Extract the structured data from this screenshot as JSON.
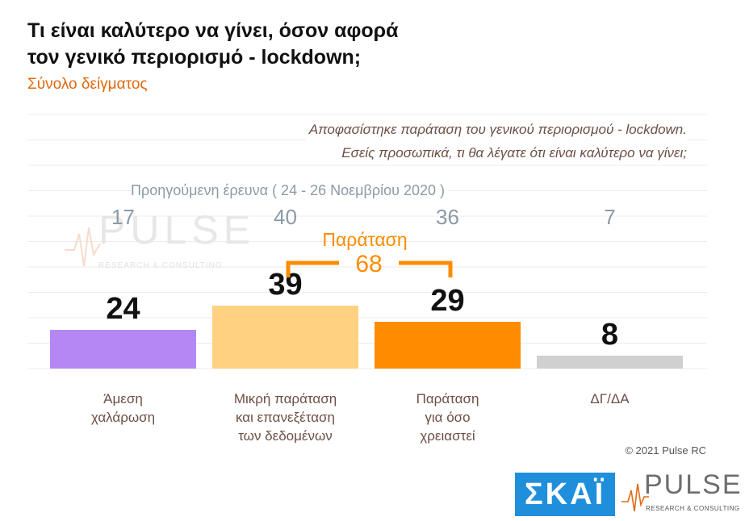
{
  "header": {
    "title_line1": "Τι είναι καλύτερο να γίνει, όσον αφορά",
    "title_line2": "τον γενικό περιορισμό - lockdown;",
    "subtitle": "Σύνολο δείγματος"
  },
  "question": {
    "line1": "Αποφασίστηκε παράταση του γενικού περιορισμού - lockdown.",
    "line2": "Εσείς προσωπικά, τι θα λέγατε ότι είναι καλύτερο να γίνει;"
  },
  "previous_survey_label": "Προηγούμενη έρευνα  ( 24 - 26  Νοεμβρίου  2020 )",
  "bracket": {
    "label": "Παράταση",
    "value": "68"
  },
  "chart_data": {
    "type": "bar",
    "categories": [
      "Άμεση\nχαλάρωση",
      "Μικρή παράταση\nκαι επανεξέταση\nτων δεδομένων",
      "Παράταση\nγια όσο\nχρειαστεί",
      "ΔΓ/ΔΑ"
    ],
    "values": [
      24,
      39,
      29,
      8
    ],
    "previous_values": [
      17,
      40,
      36,
      7
    ],
    "colors": [
      "#b388f5",
      "#ffd180",
      "#ff8c00",
      "#d0d0d0"
    ],
    "ylim": [
      0,
      100
    ],
    "grid": true
  },
  "watermark": {
    "word": "PULSE",
    "sub": "RESEARCH & CONSULTING"
  },
  "copyright": "© 2021 Pulse RC",
  "logos": {
    "skai": "ΣΚΑΪ",
    "pulse_word": "PULSE",
    "pulse_sub": "RESEARCH & CONSULTING"
  }
}
